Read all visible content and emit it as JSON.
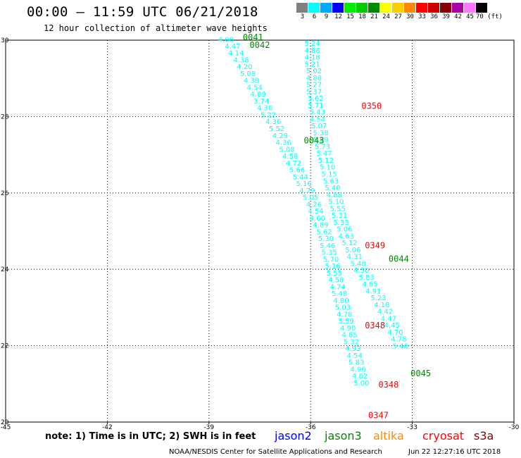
{
  "header": {
    "title": "00:00 — 11:59 UTC 06/21/2018",
    "subtitle": "12 hour collection of altimeter wave heights"
  },
  "colorbar": {
    "labels": [
      "3",
      "6",
      "9",
      "12",
      "15",
      "18",
      "21",
      "24",
      "27",
      "30",
      "33",
      "36",
      "39",
      "42",
      "45",
      "70 (ft)"
    ],
    "colors": [
      "#808080",
      "#00ffff",
      "#00aaff",
      "#0000ff",
      "#00ee00",
      "#00cc00",
      "#008800",
      "#ffff00",
      "#ffcc00",
      "#ff8800",
      "#ff0000",
      "#cc0000",
      "#880000",
      "#aa00aa",
      "#ff77ff",
      "#000000"
    ]
  },
  "legend": {
    "note": "note: 1) Time is in UTC; 2) SWH is in feet",
    "satellites": [
      {
        "name": "jason2",
        "color": "#0000ff"
      },
      {
        "name": "jason3",
        "color": "#008800"
      },
      {
        "name": "altika",
        "color": "#ff8800"
      },
      {
        "name": "cryosat",
        "color": "#ff0000"
      },
      {
        "name": "s3a",
        "color": "#880000"
      }
    ]
  },
  "footer": {
    "credit": "NOAA/NESDIS Center for Satellite Applications and Research",
    "timestamp": "Jun 22 12:27:16 UTC 2018"
  },
  "chart_data": {
    "type": "scatter",
    "title": "00:00 — 11:59 UTC 06/21/2018",
    "xlim": [
      -45,
      -30
    ],
    "ylim": [
      20,
      30
    ],
    "x_ticks": [
      "-45",
      "-42",
      "-39",
      "-36",
      "-33",
      "-30"
    ],
    "y_ticks": [
      "20",
      "22",
      "24",
      "26",
      "28",
      "30"
    ],
    "grid": true,
    "point_color": "#00ffff",
    "tracks": [
      {
        "label_points": [
          {
            "x": -38.5,
            "y": 29.95,
            "v": "4.08"
          },
          {
            "x": -38.3,
            "y": 29.78,
            "v": "4.47"
          },
          {
            "x": -38.2,
            "y": 29.6,
            "v": "4.14"
          },
          {
            "x": -38.05,
            "y": 29.42,
            "v": "4.38"
          },
          {
            "x": -37.95,
            "y": 29.24,
            "v": "4.20"
          },
          {
            "x": -37.85,
            "y": 29.06,
            "v": "5.08"
          },
          {
            "x": -37.75,
            "y": 28.88,
            "v": "4.38"
          },
          {
            "x": -37.65,
            "y": 28.7,
            "v": "4.54"
          },
          {
            "x": -37.55,
            "y": 28.52,
            "v": "4.89"
          },
          {
            "x": -37.45,
            "y": 28.34,
            "v": "3.74"
          },
          {
            "x": -37.35,
            "y": 28.16,
            "v": "4.30"
          },
          {
            "x": -37.25,
            "y": 27.98,
            "v": "5.22"
          },
          {
            "x": -37.1,
            "y": 27.8,
            "v": "4.36"
          },
          {
            "x": -37.0,
            "y": 27.62,
            "v": "5.52"
          },
          {
            "x": -36.9,
            "y": 27.44,
            "v": "4.29"
          },
          {
            "x": -36.8,
            "y": 27.26,
            "v": "4.36"
          },
          {
            "x": -36.7,
            "y": 27.08,
            "v": "5.08"
          },
          {
            "x": -36.6,
            "y": 26.9,
            "v": "4.58"
          },
          {
            "x": -36.5,
            "y": 26.72,
            "v": "4.72"
          },
          {
            "x": -36.4,
            "y": 26.54,
            "v": "5.66"
          },
          {
            "x": -36.3,
            "y": 26.36,
            "v": "5.44"
          },
          {
            "x": -36.2,
            "y": 26.18,
            "v": "5.16"
          },
          {
            "x": -36.1,
            "y": 26.0,
            "v": "4.79"
          },
          {
            "x": -36.0,
            "y": 25.82,
            "v": "5.05"
          },
          {
            "x": -35.9,
            "y": 25.64,
            "v": "4.26"
          },
          {
            "x": -35.85,
            "y": 25.46,
            "v": "4.54"
          },
          {
            "x": -35.8,
            "y": 25.28,
            "v": "4.60"
          },
          {
            "x": -35.7,
            "y": 25.1,
            "v": "4.89"
          },
          {
            "x": -35.6,
            "y": 24.92,
            "v": "5.62"
          },
          {
            "x": -35.55,
            "y": 24.74,
            "v": "5.30"
          },
          {
            "x": -35.5,
            "y": 24.56,
            "v": "5.46"
          },
          {
            "x": -35.45,
            "y": 24.38,
            "v": "5.35"
          },
          {
            "x": -35.4,
            "y": 24.2,
            "v": "5.70"
          },
          {
            "x": -35.35,
            "y": 24.02,
            "v": "5.16"
          },
          {
            "x": -35.3,
            "y": 23.84,
            "v": "5.55"
          },
          {
            "x": -35.25,
            "y": 23.66,
            "v": "4.58"
          },
          {
            "x": -35.2,
            "y": 23.48,
            "v": "4.74"
          },
          {
            "x": -35.15,
            "y": 23.3,
            "v": "5.48"
          },
          {
            "x": -35.1,
            "y": 23.12,
            "v": "4.80"
          },
          {
            "x": -35.05,
            "y": 22.94,
            "v": "5.03"
          },
          {
            "x": -35.0,
            "y": 22.76,
            "v": "4.78"
          },
          {
            "x": -34.95,
            "y": 22.58,
            "v": "5.59"
          },
          {
            "x": -34.9,
            "y": 22.4,
            "v": "4.90"
          },
          {
            "x": -34.85,
            "y": 22.22,
            "v": "4.85"
          },
          {
            "x": -34.8,
            "y": 22.04,
            "v": "5.32"
          },
          {
            "x": -34.75,
            "y": 21.86,
            "v": "4.93"
          },
          {
            "x": -34.7,
            "y": 21.68,
            "v": "4.54"
          },
          {
            "x": -34.65,
            "y": 21.5,
            "v": "5.83"
          },
          {
            "x": -34.6,
            "y": 21.32,
            "v": "4.96"
          },
          {
            "x": -34.55,
            "y": 21.14,
            "v": "4.82"
          },
          {
            "x": -34.5,
            "y": 20.96,
            "v": "5.00"
          }
        ]
      },
      {
        "label_points": [
          {
            "x": -35.95,
            "y": 29.85,
            "v": "5.24"
          },
          {
            "x": -35.95,
            "y": 29.67,
            "v": "4.88"
          },
          {
            "x": -35.95,
            "y": 29.49,
            "v": "4.18"
          },
          {
            "x": -35.95,
            "y": 29.31,
            "v": "5.21"
          },
          {
            "x": -35.9,
            "y": 29.13,
            "v": "5.02"
          },
          {
            "x": -35.9,
            "y": 28.95,
            "v": "4.88"
          },
          {
            "x": -35.9,
            "y": 28.77,
            "v": "5.27"
          },
          {
            "x": -35.9,
            "y": 28.59,
            "v": "5.37"
          },
          {
            "x": -35.85,
            "y": 28.41,
            "v": "5.62"
          },
          {
            "x": -35.85,
            "y": 28.23,
            "v": "5.71"
          },
          {
            "x": -35.8,
            "y": 28.05,
            "v": "5.43"
          },
          {
            "x": -35.8,
            "y": 27.87,
            "v": "4.54"
          },
          {
            "x": -35.75,
            "y": 27.69,
            "v": "5.07"
          },
          {
            "x": -35.7,
            "y": 27.51,
            "v": "5.38"
          },
          {
            "x": -35.7,
            "y": 27.33,
            "v": "5.69"
          },
          {
            "x": -35.65,
            "y": 27.15,
            "v": "5.73"
          },
          {
            "x": -35.6,
            "y": 26.97,
            "v": "5.47"
          },
          {
            "x": -35.55,
            "y": 26.79,
            "v": "5.12"
          },
          {
            "x": -35.5,
            "y": 26.61,
            "v": "5.10"
          },
          {
            "x": -35.45,
            "y": 26.43,
            "v": "5.15"
          },
          {
            "x": -35.4,
            "y": 26.25,
            "v": "5.63"
          },
          {
            "x": -35.35,
            "y": 26.07,
            "v": "5.40"
          },
          {
            "x": -35.3,
            "y": 25.89,
            "v": "4.88"
          },
          {
            "x": -35.25,
            "y": 25.71,
            "v": "5.10"
          },
          {
            "x": -35.2,
            "y": 25.53,
            "v": "5.55"
          },
          {
            "x": -35.15,
            "y": 25.35,
            "v": "5.31"
          },
          {
            "x": -35.1,
            "y": 25.17,
            "v": "5.33"
          },
          {
            "x": -35.0,
            "y": 24.99,
            "v": "5.06"
          },
          {
            "x": -34.95,
            "y": 24.81,
            "v": "4.63"
          },
          {
            "x": -34.85,
            "y": 24.63,
            "v": "5.12"
          },
          {
            "x": -34.75,
            "y": 24.45,
            "v": "5.06"
          },
          {
            "x": -34.7,
            "y": 24.27,
            "v": "4.31"
          },
          {
            "x": -34.6,
            "y": 24.09,
            "v": "5.48"
          },
          {
            "x": -34.5,
            "y": 23.91,
            "v": "4.50"
          },
          {
            "x": -34.35,
            "y": 23.73,
            "v": "5.83"
          },
          {
            "x": -34.25,
            "y": 23.55,
            "v": "4.65"
          },
          {
            "x": -34.15,
            "y": 23.37,
            "v": "4.91"
          },
          {
            "x": -34.0,
            "y": 23.19,
            "v": "5.23"
          },
          {
            "x": -33.9,
            "y": 23.01,
            "v": "4.18"
          },
          {
            "x": -33.8,
            "y": 22.83,
            "v": "4.42"
          },
          {
            "x": -33.7,
            "y": 22.65,
            "v": "4.47"
          },
          {
            "x": -33.6,
            "y": 22.47,
            "v": "4.45"
          },
          {
            "x": -33.5,
            "y": 22.29,
            "v": "4.70"
          },
          {
            "x": -33.4,
            "y": 22.11,
            "v": "4.78"
          },
          {
            "x": -33.35,
            "y": 21.93,
            "v": "5.46"
          }
        ]
      }
    ],
    "time_labels": [
      {
        "x": -37.7,
        "y": 30.0,
        "t": "0041",
        "sat": "jason3"
      },
      {
        "x": -37.5,
        "y": 29.8,
        "t": "0042",
        "sat": "jason3"
      },
      {
        "x": -34.2,
        "y": 28.2,
        "t": "0350",
        "sat": "cryosat"
      },
      {
        "x": -35.9,
        "y": 27.3,
        "t": "0043",
        "sat": "jason3"
      },
      {
        "x": -34.1,
        "y": 24.55,
        "t": "0349",
        "sat": "cryosat"
      },
      {
        "x": -33.4,
        "y": 24.2,
        "t": "0044",
        "sat": "jason3"
      },
      {
        "x": -34.1,
        "y": 22.45,
        "t": "0348",
        "sat": "cryosat"
      },
      {
        "x": -32.75,
        "y": 21.2,
        "t": "0045",
        "sat": "jason3"
      },
      {
        "x": -33.7,
        "y": 20.9,
        "t": "0348",
        "sat": "cryosat"
      },
      {
        "x": -34.0,
        "y": 20.1,
        "t": "0347",
        "sat": "cryosat"
      }
    ]
  }
}
